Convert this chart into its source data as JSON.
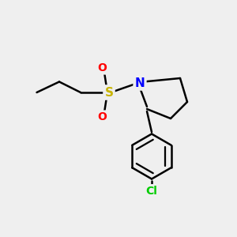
{
  "background_color": "#efefef",
  "bond_color": "#000000",
  "N_color": "#0000ff",
  "S_color": "#c8b400",
  "O_color": "#ff0000",
  "Cl_color": "#00cc00",
  "line_width": 1.8,
  "figsize": [
    3.0,
    3.0
  ],
  "dpi": 100,
  "xlim": [
    0,
    10
  ],
  "ylim": [
    0,
    10
  ]
}
